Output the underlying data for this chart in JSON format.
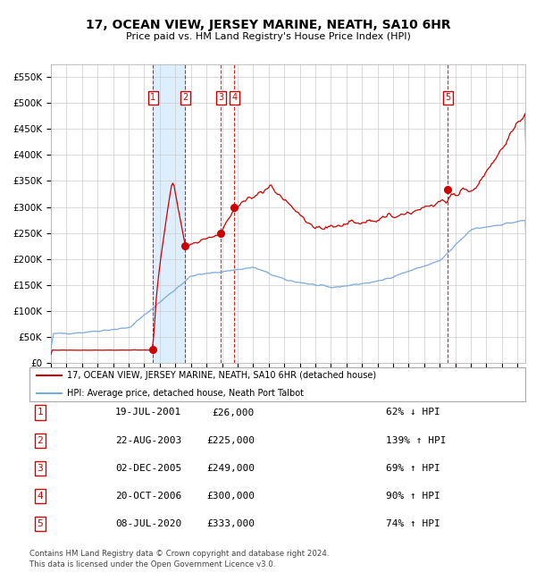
{
  "title": "17, OCEAN VIEW, JERSEY MARINE, NEATH, SA10 6HR",
  "subtitle": "Price paid vs. HM Land Registry's House Price Index (HPI)",
  "legend_line1": "17, OCEAN VIEW, JERSEY MARINE, NEATH, SA10 6HR (detached house)",
  "legend_line2": "HPI: Average price, detached house, Neath Port Talbot",
  "footer1": "Contains HM Land Registry data © Crown copyright and database right 2024.",
  "footer2": "This data is licensed under the Open Government Licence v3.0.",
  "sale_dates_num": [
    2001.55,
    2003.64,
    2005.92,
    2006.8,
    2020.52
  ],
  "sale_prices": [
    26000,
    225000,
    249000,
    300000,
    333000
  ],
  "sale_labels": [
    "1",
    "2",
    "3",
    "4",
    "5"
  ],
  "sale_info": [
    [
      "1",
      "19-JUL-2001",
      "£26,000",
      "62% ↓ HPI"
    ],
    [
      "2",
      "22-AUG-2003",
      "£225,000",
      "139% ↑ HPI"
    ],
    [
      "3",
      "02-DEC-2005",
      "£249,000",
      "69% ↑ HPI"
    ],
    [
      "4",
      "20-OCT-2006",
      "£300,000",
      "90% ↑ HPI"
    ],
    [
      "5",
      "08-JUL-2020",
      "£333,000",
      "74% ↑ HPI"
    ]
  ],
  "hpi_color": "#7aaadd",
  "price_color": "#cc0000",
  "bg_color": "#ffffff",
  "grid_color": "#cccccc",
  "shade_color": "#ddeeff",
  "ylim": [
    0,
    575000
  ],
  "xlim_start": 1995.0,
  "xlim_end": 2025.5,
  "yticks": [
    0,
    50000,
    100000,
    150000,
    200000,
    250000,
    300000,
    350000,
    400000,
    450000,
    500000,
    550000
  ]
}
